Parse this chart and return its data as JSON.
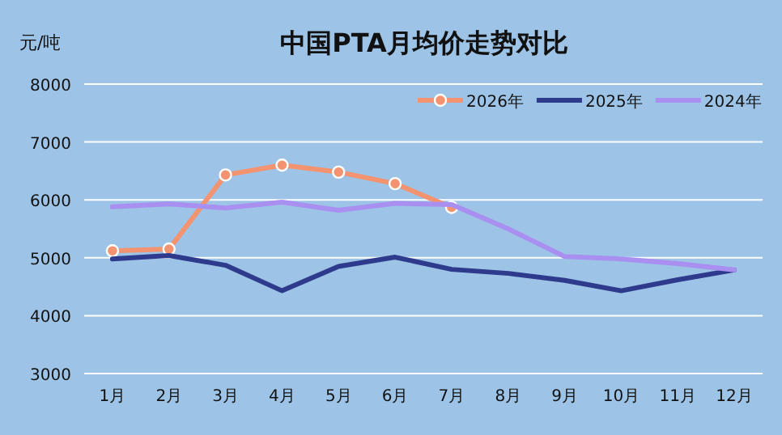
{
  "chart_data": {
    "type": "line",
    "title": "中国PTA月均价走势对比",
    "ylabel": "元/吨",
    "categories": [
      "1月",
      "2月",
      "3月",
      "4月",
      "5月",
      "6月",
      "7月",
      "8月",
      "9月",
      "10月",
      "11月",
      "12月"
    ],
    "series": [
      {
        "name": "2026年",
        "color": "#f4936f",
        "marker": "circle",
        "values": [
          5120,
          5150,
          6430,
          6600,
          6480,
          6280,
          5870,
          null,
          null,
          null,
          null,
          null
        ]
      },
      {
        "name": "2025年",
        "color": "#2e3a8c",
        "values": [
          4980,
          5040,
          4870,
          4430,
          4850,
          5010,
          4800,
          4730,
          4610,
          4430,
          4620,
          4790
        ]
      },
      {
        "name": "2024年",
        "color": "#a98ff0",
        "values": [
          5880,
          5930,
          5860,
          5960,
          5820,
          5940,
          5920,
          5500,
          5020,
          4980,
          4900,
          4790
        ]
      }
    ],
    "ylim": [
      3000,
      8000
    ],
    "yticks": [
      3000,
      4000,
      5000,
      6000,
      7000,
      8000
    ],
    "grid": "y",
    "legend": "top right"
  }
}
